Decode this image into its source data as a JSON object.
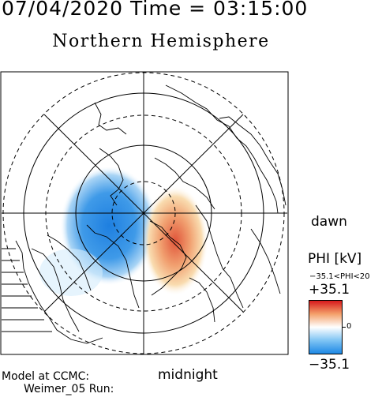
{
  "header": {
    "datetime": "07/04/2020 Time = 03:15:00",
    "title": "Northern Hemisphere"
  },
  "map": {
    "projection": "polar stereographic, north pole",
    "labels": {
      "dawn": "dawn",
      "midnight": "midnight"
    }
  },
  "legend": {
    "quantity": "PHI [kV]",
    "range_text": "−35.1<PHI<20",
    "max_label": "+35.1",
    "zero_label": "0",
    "min_label": "−35.1",
    "colors": {
      "positive": "#d7191c",
      "neutral": "#ffffff",
      "negative": "#1e88e5"
    }
  },
  "footer": {
    "line1": "Model at CCMC:",
    "line2": "Weimer_05 Run:"
  }
}
